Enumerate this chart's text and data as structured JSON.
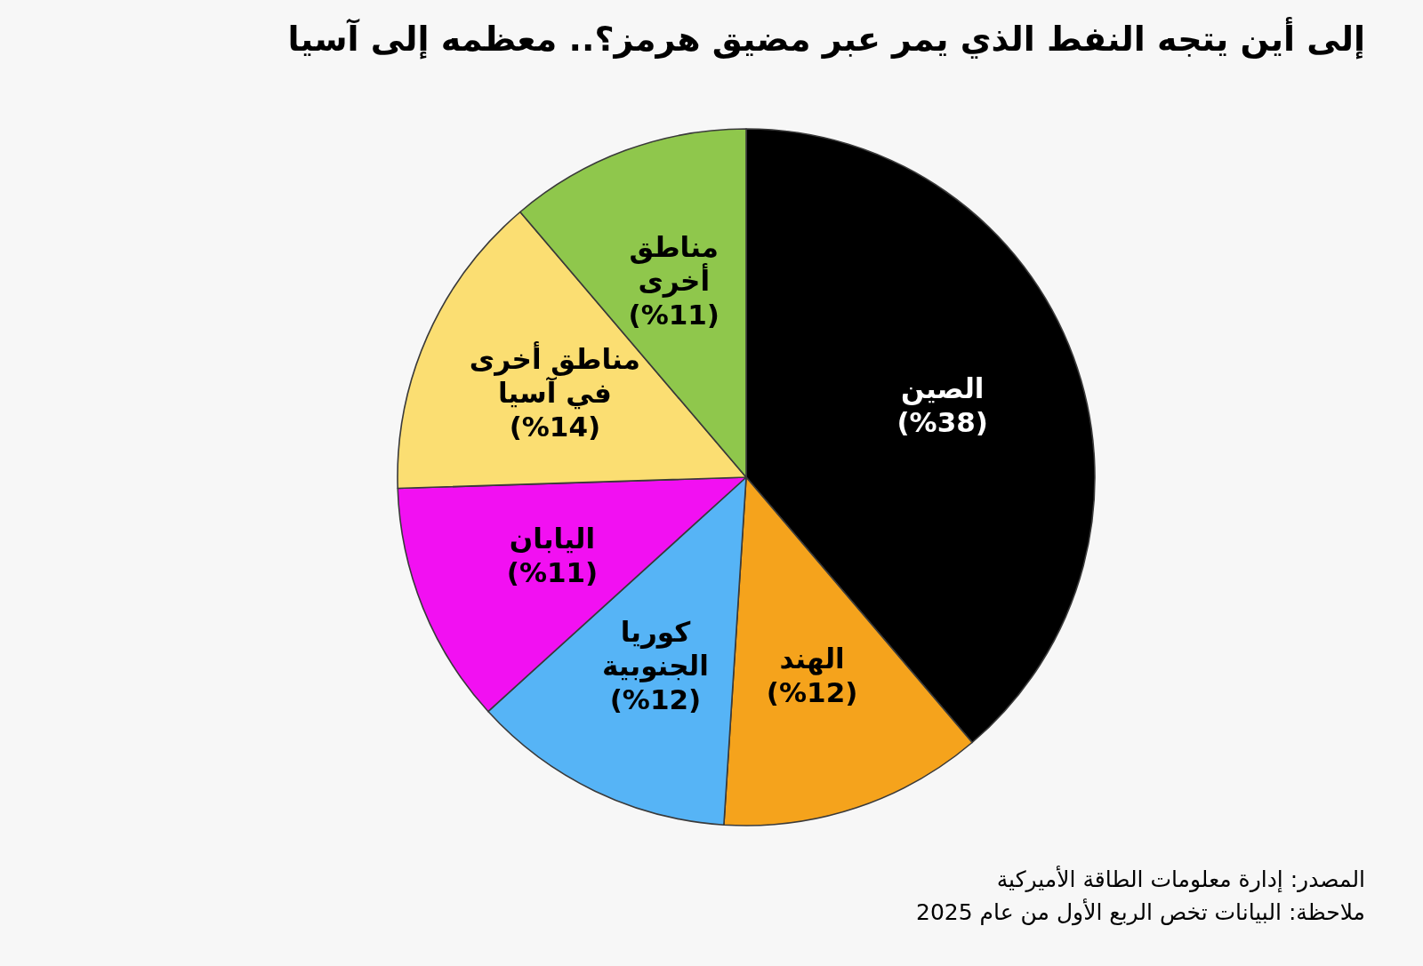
{
  "chart_data": {
    "type": "pie",
    "title": "إلى أين يتجه النفط الذي يمر عبر مضيق هرمز؟.. معظمه إلى آسيا",
    "categories": [
      "الصين",
      "الهند",
      "كوريا الجنوبية",
      "اليابان",
      "مناطق أخرى في آسيا",
      "مناطق أخرى"
    ],
    "values": [
      38,
      12,
      12,
      11,
      14,
      11
    ],
    "value_labels": [
      "(%38)",
      "(%12)",
      "(%12)",
      "(%11)",
      "(%14)",
      "(%11)"
    ],
    "colors": [
      "#000000",
      "#f5a31c",
      "#56b4f6",
      "#f210f2",
      "#fbde72",
      "#8fc74c"
    ],
    "annotations": [
      "المصدر: إدارة معلومات الطاقة الأميركية",
      "ملاحظة: البيانات تخص الربع الأول من عام 2025"
    ]
  }
}
